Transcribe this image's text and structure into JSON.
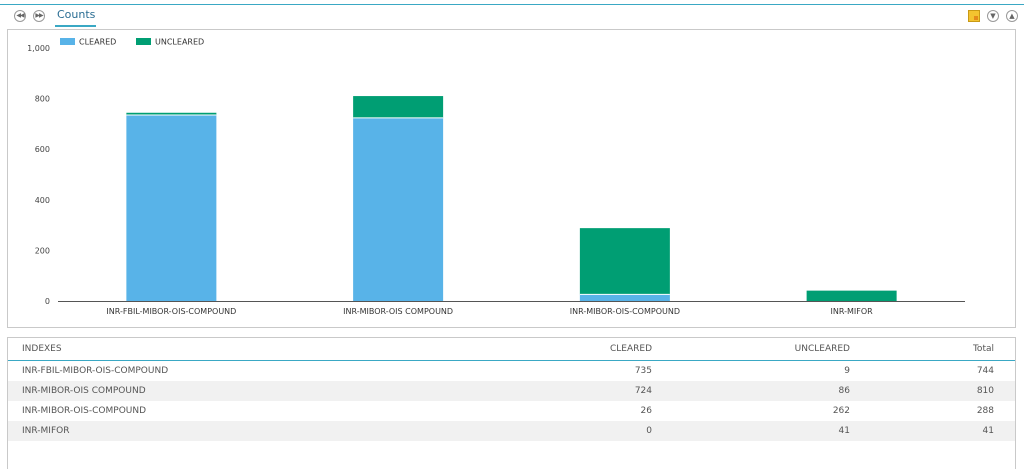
{
  "toolbar": {
    "tab_label": "Counts",
    "left_icons": [
      "rewind-icon",
      "fast-forward-icon"
    ],
    "right_icons": [
      "export-icon",
      "collapse-down-icon",
      "collapse-up-icon"
    ]
  },
  "chart_data": {
    "type": "bar",
    "stacked": true,
    "categories": [
      "INR-FBIL-MIBOR-OIS-COMPOUND",
      "INR-MIBOR-OIS COMPOUND",
      "INR-MIBOR-OIS-COMPOUND",
      "INR-MIFOR"
    ],
    "series": [
      {
        "name": "CLEARED",
        "values": [
          735,
          724,
          26,
          0
        ],
        "color": "#58b3e8"
      },
      {
        "name": "UNCLEARED",
        "values": [
          9,
          86,
          262,
          41
        ],
        "color": "#009e73"
      }
    ],
    "ylim": [
      0,
      1000
    ],
    "yticks": [
      "0",
      "200",
      "400",
      "600",
      "800",
      "1,000"
    ],
    "ytick_values": [
      0,
      200,
      400,
      600,
      800,
      1000
    ],
    "legend_position": "top-left",
    "grid": false
  },
  "table": {
    "headers": [
      "INDEXES",
      "CLEARED",
      "UNCLEARED",
      "Total"
    ],
    "rows": [
      [
        "INR-FBIL-MIBOR-OIS-COMPOUND",
        "735",
        "9",
        "744"
      ],
      [
        "INR-MIBOR-OIS COMPOUND",
        "724",
        "86",
        "810"
      ],
      [
        "INR-MIBOR-OIS-COMPOUND",
        "26",
        "262",
        "288"
      ],
      [
        "INR-MIFOR",
        "0",
        "41",
        "41"
      ]
    ]
  }
}
